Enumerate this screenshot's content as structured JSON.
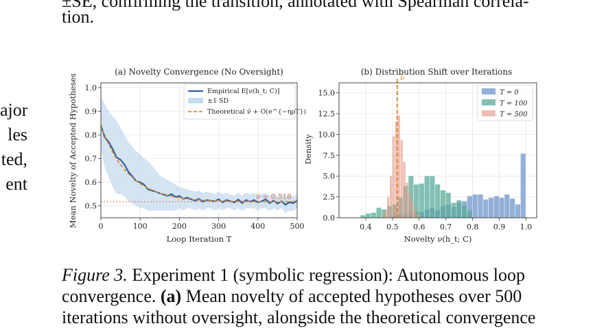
{
  "top_text": {
    "line1": "±SE, confirming the transition, annotated with Spearman correla-",
    "line2": "tion."
  },
  "margin_fragments": [
    "ajor",
    "les",
    "ted,",
    "ent"
  ],
  "caption": {
    "label": "Figure 3.",
    "line1_rest": " Experiment 1 (symbolic regression): Autonomous loop",
    "line2_a": "convergence. ",
    "line2_bold": "(a)",
    "line2_rest": " Mean novelty of accepted hypotheses over 500",
    "line3": "iterations without oversight, alongside the theoretical convergence"
  },
  "chart_data": [
    {
      "type": "line",
      "title": "(a) Novelty Convergence (No Oversight)",
      "xlabel": "Loop Iteration T",
      "ylabel": "Mean Novelty of Accepted Hypotheses",
      "xlim": [
        0,
        500
      ],
      "ylim": [
        0.45,
        1.02
      ],
      "xticks": [
        0,
        100,
        200,
        300,
        400,
        500
      ],
      "yticks": [
        0.5,
        0.6,
        0.7,
        0.8,
        0.9,
        1.0
      ],
      "grid": true,
      "legend": "top-right",
      "x": [
        0,
        10,
        20,
        30,
        40,
        50,
        60,
        70,
        80,
        90,
        100,
        110,
        120,
        130,
        140,
        150,
        160,
        170,
        180,
        190,
        200,
        210,
        220,
        230,
        240,
        250,
        260,
        270,
        280,
        290,
        300,
        310,
        320,
        330,
        340,
        350,
        360,
        370,
        380,
        390,
        400,
        410,
        420,
        430,
        440,
        450,
        460,
        470,
        480,
        490,
        500
      ],
      "series": [
        {
          "name": "Empirical E[ν(h_t; C)]",
          "color": "#2b5fa3",
          "values": [
            0.84,
            0.79,
            0.77,
            0.74,
            0.705,
            0.695,
            0.675,
            0.645,
            0.625,
            0.605,
            0.6,
            0.59,
            0.57,
            0.565,
            0.56,
            0.553,
            0.548,
            0.542,
            0.55,
            0.538,
            0.542,
            0.53,
            0.535,
            0.528,
            0.522,
            0.53,
            0.518,
            0.525,
            0.522,
            0.52,
            0.528,
            0.515,
            0.525,
            0.52,
            0.515,
            0.527,
            0.512,
            0.525,
            0.518,
            0.525,
            0.515,
            0.52,
            0.528,
            0.512,
            0.522,
            0.51,
            0.52,
            0.505,
            0.515,
            0.512,
            0.522
          ]
        },
        {
          "name": "Theoretical ν̄ + O(e^{−ηρT})",
          "color": "#e08a2c",
          "values": [
            0.84,
            0.797,
            0.76,
            0.727,
            0.699,
            0.675,
            0.654,
            0.636,
            0.62,
            0.606,
            0.594,
            0.584,
            0.575,
            0.567,
            0.56,
            0.554,
            0.549,
            0.545,
            0.541,
            0.537,
            0.534,
            0.532,
            0.53,
            0.528,
            0.526,
            0.525,
            0.524,
            0.523,
            0.522,
            0.521,
            0.521,
            0.52,
            0.52,
            0.52,
            0.519,
            0.519,
            0.519,
            0.519,
            0.519,
            0.518,
            0.518,
            0.518,
            0.518,
            0.518,
            0.518,
            0.518,
            0.518,
            0.518,
            0.518,
            0.518,
            0.518
          ]
        }
      ],
      "band": {
        "name": "±1 SD",
        "color": "#c6dbef",
        "upper": [
          0.96,
          0.93,
          0.9,
          0.88,
          0.86,
          0.83,
          0.8,
          0.77,
          0.75,
          0.73,
          0.72,
          0.7,
          0.69,
          0.67,
          0.65,
          0.63,
          0.62,
          0.61,
          0.6,
          0.59,
          0.58,
          0.575,
          0.57,
          0.565,
          0.56,
          0.565,
          0.555,
          0.56,
          0.555,
          0.55,
          0.56,
          0.55,
          0.555,
          0.55,
          0.545,
          0.555,
          0.545,
          0.555,
          0.55,
          0.555,
          0.545,
          0.55,
          0.555,
          0.545,
          0.55,
          0.54,
          0.55,
          0.54,
          0.545,
          0.54,
          0.55
        ],
        "lower": [
          0.74,
          0.66,
          0.62,
          0.58,
          0.55,
          0.55,
          0.54,
          0.52,
          0.51,
          0.5,
          0.49,
          0.49,
          0.48,
          0.48,
          0.48,
          0.48,
          0.48,
          0.48,
          0.48,
          0.48,
          0.49,
          0.48,
          0.49,
          0.49,
          0.48,
          0.49,
          0.48,
          0.49,
          0.49,
          0.48,
          0.49,
          0.48,
          0.49,
          0.49,
          0.48,
          0.49,
          0.48,
          0.49,
          0.49,
          0.49,
          0.48,
          0.49,
          0.49,
          0.48,
          0.49,
          0.48,
          0.49,
          0.47,
          0.48,
          0.48,
          0.49
        ]
      },
      "reference": {
        "value": 0.518,
        "label": "ν̄ = 0.518",
        "color": "#d9684a"
      }
    },
    {
      "type": "histogram",
      "title": "(b) Distribution Shift over Iterations",
      "xlabel": "Novelty ν(h_t; C)",
      "ylabel": "Density",
      "xlim": [
        0.3,
        1.04
      ],
      "ylim": [
        0,
        16.2
      ],
      "xticks": [
        0.4,
        0.5,
        0.6,
        0.7,
        0.8,
        0.9,
        1.0
      ],
      "yticks": [
        0.0,
        2.5,
        5.0,
        7.5,
        10.0,
        12.5,
        15.0
      ],
      "grid": true,
      "legend": "top-right",
      "vline": {
        "value": 0.518,
        "label": "ν̄",
        "color": "#e08a2c"
      },
      "series": [
        {
          "name": "T = 0",
          "color": "#6f95c9",
          "edges": [
            0.5,
            0.52,
            0.54,
            0.56,
            0.58,
            0.6,
            0.62,
            0.64,
            0.66,
            0.68,
            0.7,
            0.72,
            0.74,
            0.76,
            0.78,
            0.8,
            0.82,
            0.84,
            0.86,
            0.88,
            0.9,
            0.92,
            0.94,
            0.96,
            0.98,
            1.0
          ],
          "values": [
            0.3,
            0.5,
            0.4,
            0.6,
            0.8,
            0.7,
            1.0,
            1.2,
            0.9,
            1.4,
            1.6,
            1.3,
            1.8,
            2.0,
            2.6,
            2.8,
            2.8,
            2.2,
            2.4,
            2.6,
            2.4,
            2.8,
            2.3,
            1.6,
            7.7
          ]
        },
        {
          "name": "T = 100",
          "color": "#5aab9a",
          "edges": [
            0.38,
            0.4,
            0.42,
            0.44,
            0.46,
            0.48,
            0.5,
            0.52,
            0.54,
            0.56,
            0.58,
            0.6,
            0.62,
            0.64,
            0.66,
            0.68,
            0.7,
            0.72,
            0.74,
            0.76,
            0.78,
            0.8
          ],
          "values": [
            0.3,
            0.5,
            0.6,
            1.2,
            1.0,
            1.4,
            1.6,
            2.4,
            3.8,
            5.0,
            4.0,
            4.1,
            5.0,
            5.0,
            4.0,
            3.3,
            3.0,
            1.8,
            2.1,
            1.5,
            0.9
          ]
        },
        {
          "name": "T = 500",
          "color": "#e59a8a",
          "edges": [
            0.46,
            0.47,
            0.48,
            0.49,
            0.5,
            0.51,
            0.52,
            0.53,
            0.54,
            0.55,
            0.56,
            0.57,
            0.58,
            0.59,
            0.6
          ],
          "values": [
            0.3,
            0.8,
            2.5,
            5.0,
            9.8,
            11.6,
            12.3,
            9.3,
            6.7,
            4.2,
            3.0,
            2.0,
            1.0,
            0.4
          ]
        }
      ]
    }
  ]
}
